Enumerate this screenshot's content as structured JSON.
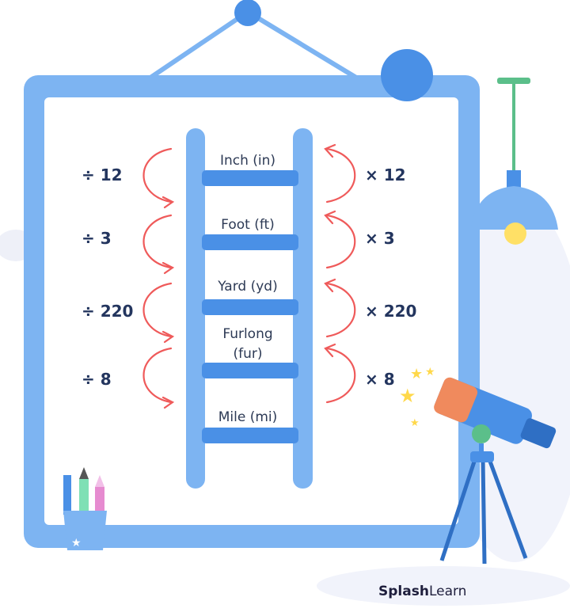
{
  "units": [
    {
      "line1": "Inch (in)",
      "line2": ""
    },
    {
      "line1": "Foot (ft)",
      "line2": ""
    },
    {
      "line1": "Yard (yd)",
      "line2": ""
    },
    {
      "line1": "Furlong",
      "line2": "(fur)"
    },
    {
      "line1": "Mile (mi)",
      "line2": ""
    }
  ],
  "divide_labels": [
    "÷ 12",
    "÷ 3",
    "÷ 220",
    "÷ 8"
  ],
  "multiply_labels": [
    "× 12",
    "× 3",
    "× 220",
    "× 8"
  ],
  "brand": {
    "bold": "Splash",
    "light": "Learn"
  },
  "colors": {
    "frame": "#7db4f2",
    "rung": "#4a90e6",
    "arrow": "#ef5a5a",
    "text": "#23355e"
  }
}
